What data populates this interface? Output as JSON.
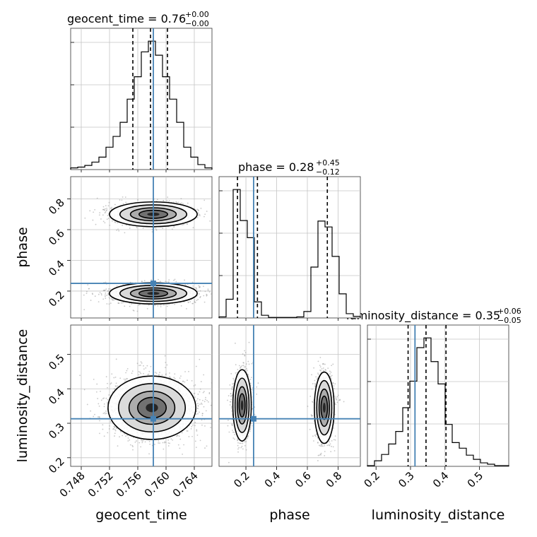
{
  "chart_data": {
    "type": "corner",
    "parameters": [
      "geocent_time",
      "phase",
      "luminosity_distance"
    ],
    "truths": {
      "geocent_time": 0.7582,
      "phase": 0.25,
      "luminosity_distance": 0.313
    },
    "titles": [
      {
        "param": "geocent_time",
        "median": "0.76",
        "plus": "+0.00",
        "minus": "−0.00"
      },
      {
        "param": "phase",
        "median": "0.28",
        "plus": "+0.45",
        "minus": "−0.12"
      },
      {
        "param": "luminosity_distance",
        "median": "0.35",
        "plus": "+0.06",
        "minus": "−0.05"
      }
    ],
    "quantiles": {
      "geocent_time": [
        0.7553,
        0.7578,
        0.7602
      ],
      "phase": [
        0.145,
        0.275,
        0.73
      ],
      "luminosity_distance": [
        0.293,
        0.345,
        0.403
      ]
    },
    "axes": {
      "geocent_time": {
        "range": [
          0.7465,
          0.7665
        ],
        "ticks": [
          0.748,
          0.752,
          0.756,
          0.76,
          0.764
        ],
        "tick_labels": [
          "0.748",
          "0.752",
          "0.756",
          "0.760",
          "0.764"
        ]
      },
      "phase": {
        "range": [
          0.025,
          0.945
        ],
        "ticks": [
          0.2,
          0.4,
          0.6,
          0.8
        ],
        "tick_labels": [
          "0.2",
          "0.4",
          "0.6",
          "0.8"
        ]
      },
      "luminosity_distance": {
        "range": [
          0.175,
          0.585
        ],
        "ticks": [
          0.2,
          0.3,
          0.4,
          0.5
        ],
        "tick_labels": [
          "0.2",
          "0.3",
          "0.4",
          "0.5"
        ]
      }
    },
    "histograms": {
      "geocent_time": {
        "edges": [
          0.7465,
          0.7475,
          0.7485,
          0.7495,
          0.7505,
          0.7515,
          0.7525,
          0.7535,
          0.7545,
          0.7555,
          0.7565,
          0.7575,
          0.7585,
          0.7595,
          0.7605,
          0.7615,
          0.7625,
          0.7635,
          0.7645,
          0.7655,
          0.7665
        ],
        "counts": [
          2,
          3,
          5,
          9,
          15,
          27,
          40,
          57,
          85,
          112,
          142,
          155,
          138,
          112,
          85,
          57,
          27,
          15,
          6,
          2
        ]
      },
      "phase": {
        "edges": [
          0.025,
          0.071,
          0.117,
          0.163,
          0.209,
          0.255,
          0.301,
          0.347,
          0.393,
          0.439,
          0.485,
          0.531,
          0.577,
          0.623,
          0.669,
          0.715,
          0.761,
          0.807,
          0.853,
          0.899,
          0.945
        ],
        "counts": [
          2,
          35,
          240,
          182,
          150,
          30,
          5,
          1,
          1,
          1,
          1,
          2,
          12,
          95,
          181,
          170,
          115,
          45,
          8,
          3
        ]
      },
      "luminosity_distance": {
        "edges": [
          0.175,
          0.1955,
          0.216,
          0.2365,
          0.257,
          0.2775,
          0.298,
          0.3185,
          0.339,
          0.3595,
          0.38,
          0.4005,
          0.421,
          0.4415,
          0.462,
          0.4825,
          0.503,
          0.5235,
          0.544,
          0.5645,
          0.585
        ],
        "counts": [
          1,
          8,
          17,
          32,
          50,
          84,
          122,
          170,
          184,
          150,
          118,
          60,
          34,
          26,
          16,
          10,
          5,
          3,
          1,
          1
        ]
      }
    },
    "density_2d": [
      {
        "x": "geocent_time",
        "y": "phase",
        "modes": [
          {
            "cx": 0.7582,
            "cy": 0.185,
            "sx": 0.0027,
            "sy": 0.03,
            "w": 0.52
          },
          {
            "cx": 0.7582,
            "cy": 0.7,
            "sx": 0.0027,
            "sy": 0.035,
            "w": 0.48
          }
        ]
      },
      {
        "x": "geocent_time",
        "y": "luminosity_distance",
        "modes": [
          {
            "cx": 0.758,
            "cy": 0.345,
            "sx": 0.0027,
            "sy": 0.04,
            "w": 1.0
          }
        ]
      },
      {
        "x": "phase",
        "y": "luminosity_distance",
        "modes": [
          {
            "cx": 0.175,
            "cy": 0.352,
            "sx": 0.026,
            "sy": 0.045,
            "w": 0.52
          },
          {
            "cx": 0.71,
            "cy": 0.345,
            "sx": 0.028,
            "sy": 0.045,
            "w": 0.48
          }
        ]
      }
    ],
    "contour_levels": [
      0.12,
      0.32,
      0.55,
      0.78
    ]
  }
}
